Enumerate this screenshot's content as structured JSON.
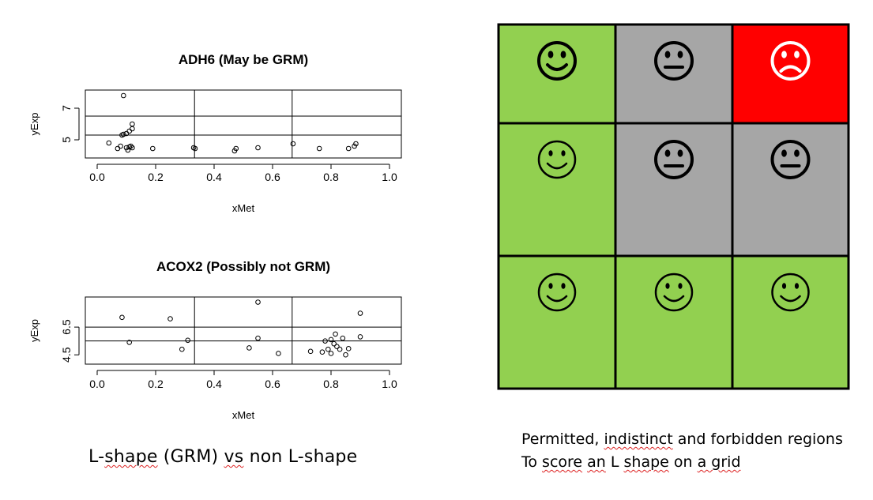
{
  "chart_data": [
    {
      "type": "scatter",
      "title": "ADH6 (May be GRM)",
      "xlabel": "xMet",
      "ylabel": "yExp",
      "xlim": [
        0,
        1
      ],
      "ylim": [
        4.0,
        8.0
      ],
      "xticks": [
        "0.0",
        "0.2",
        "0.4",
        "0.6",
        "0.8",
        "1.0"
      ],
      "yticks": [
        {
          "v": 5,
          "label": "5"
        },
        {
          "v": 7,
          "label": "7"
        }
      ],
      "grid_x": [
        0.333,
        0.667
      ],
      "grid_y": [
        5.3,
        6.5
      ],
      "x": [
        0.04,
        0.07,
        0.08,
        0.085,
        0.09,
        0.1,
        0.1,
        0.105,
        0.11,
        0.11,
        0.115,
        0.12,
        0.12,
        0.12,
        0.09,
        0.19,
        0.33,
        0.335,
        0.47,
        0.475,
        0.55,
        0.67,
        0.76,
        0.86,
        0.88,
        0.885
      ],
      "y": [
        4.8,
        4.45,
        4.6,
        5.3,
        5.35,
        5.4,
        4.5,
        4.35,
        5.55,
        4.55,
        4.6,
        5.7,
        6.0,
        4.5,
        7.8,
        4.45,
        4.5,
        4.45,
        4.3,
        4.45,
        4.5,
        4.75,
        4.45,
        4.45,
        4.6,
        4.75
      ]
    },
    {
      "type": "scatter",
      "title": "ACOX2 (Possibly not GRM)",
      "xlabel": "xMet",
      "ylabel": "yExp",
      "xlim": [
        0,
        1
      ],
      "ylim": [
        4.0,
        8.5
      ],
      "xticks": [
        "0.0",
        "0.2",
        "0.4",
        "0.6",
        "0.8",
        "1.0"
      ],
      "yticks": [
        {
          "v": 4.5,
          "label": "4.5"
        },
        {
          "v": 6.5,
          "label": "6.5"
        }
      ],
      "grid_x": [
        0.333,
        0.667
      ],
      "grid_y": [
        5.5,
        6.5
      ],
      "x": [
        0.085,
        0.11,
        0.25,
        0.29,
        0.31,
        0.52,
        0.55,
        0.55,
        0.62,
        0.73,
        0.77,
        0.78,
        0.79,
        0.8,
        0.8,
        0.81,
        0.815,
        0.82,
        0.83,
        0.84,
        0.85,
        0.86,
        0.9,
        0.9
      ],
      "y": [
        7.2,
        5.4,
        7.1,
        4.9,
        5.55,
        5.0,
        8.3,
        5.7,
        4.6,
        4.75,
        4.7,
        5.5,
        4.9,
        4.6,
        5.6,
        5.3,
        6.0,
        5.1,
        4.9,
        5.7,
        4.5,
        4.95,
        7.5,
        5.8
      ]
    }
  ],
  "grid": {
    "cells": [
      {
        "color": "#92d050",
        "face": "smile",
        "bold": true
      },
      {
        "color": "#a6a6a6",
        "face": "neutral",
        "bold": true
      },
      {
        "color": "#ff0000",
        "face": "frown",
        "bold": true,
        "face_color": "#ffffff"
      },
      {
        "color": "#92d050",
        "face": "smile",
        "bold": false
      },
      {
        "color": "#a6a6a6",
        "face": "neutral",
        "bold": true
      },
      {
        "color": "#a6a6a6",
        "face": "neutral",
        "bold": true
      },
      {
        "color": "#92d050",
        "face": "smile",
        "bold": false
      },
      {
        "color": "#92d050",
        "face": "smile",
        "bold": false
      },
      {
        "color": "#92d050",
        "face": "smile",
        "bold": false
      }
    ]
  },
  "captions": {
    "left": {
      "pre": "L-",
      "u1": "shape",
      "mid": " (GRM) ",
      "u2": "vs",
      "post": " non L-shape"
    },
    "right_line1": {
      "pre": "Permitted, ",
      "u1": "indistinct",
      "post": " and forbidden regions"
    },
    "right_line2": {
      "pre": "To ",
      "u1": "score",
      "mid": " ",
      "u2": "an",
      "mid2": " L ",
      "u3": "shape",
      "mid3": " on ",
      "u4": "a grid"
    }
  }
}
